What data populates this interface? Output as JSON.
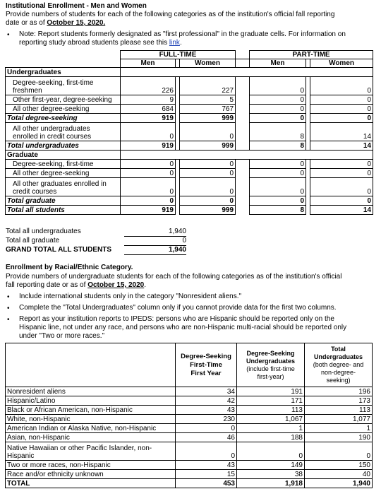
{
  "section1": {
    "title": "Institutional Enrollment - Men and Women",
    "intro_line1": "Provide numbers of students for each of the following categories as of the institution's official fall reporting",
    "intro_line2_prefix": "date or as of ",
    "date": "October 15, 2020.",
    "note_line1": "Note: Report students formerly designated as \"first professional\" in the graduate cells. For information on",
    "note_line2_prefix": "reporting study abroad students please see this ",
    "note_link": "link",
    "note_line2_suffix": "."
  },
  "table1": {
    "group_full": "FULL-TIME",
    "group_part": "PART-TIME",
    "col_men": "Men",
    "col_women": "Women",
    "rows": [
      {
        "kind": "sec",
        "label": "Undergraduates"
      },
      {
        "kind": "data",
        "label": "Degree-seeking, first-time",
        "label2": "freshmen",
        "v": [
          "226",
          "227",
          "0",
          "0"
        ]
      },
      {
        "kind": "data",
        "label": "Other first-year, degree-seeking",
        "v": [
          "9",
          "5",
          "0",
          "0"
        ]
      },
      {
        "kind": "data",
        "label": "All other degree-seeking",
        "v": [
          "684",
          "767",
          "0",
          "0"
        ]
      },
      {
        "kind": "tot",
        "label": "Total degree-seeking",
        "v": [
          "919",
          "999",
          "0",
          "0"
        ]
      },
      {
        "kind": "data",
        "label": "All other undergraduates",
        "label2": "enrolled in credit courses",
        "v": [
          "0",
          "0",
          "8",
          "14"
        ]
      },
      {
        "kind": "tot",
        "label": "Total undergraduates",
        "v": [
          "919",
          "999",
          "8",
          "14"
        ]
      },
      {
        "kind": "sec",
        "label": "Graduate"
      },
      {
        "kind": "data",
        "label": "Degree-seeking, first-time",
        "v": [
          "0",
          "0",
          "0",
          "0"
        ]
      },
      {
        "kind": "data",
        "label": "All other degree-seeking",
        "v": [
          "0",
          "0",
          "0",
          "0"
        ]
      },
      {
        "kind": "data",
        "label": "All other graduates enrolled in",
        "label2": "credit courses",
        "v": [
          "0",
          "0",
          "0",
          "0"
        ]
      },
      {
        "kind": "tot",
        "label": "Total graduate",
        "v": [
          "0",
          "0",
          "0",
          "0"
        ]
      },
      {
        "kind": "tot",
        "label": "Total all students",
        "v": [
          "919",
          "999",
          "8",
          "14"
        ]
      }
    ]
  },
  "totals": {
    "undergrad_label": "Total all undergraduates",
    "undergrad_value": "1,940",
    "graduate_label": "Total all graduate",
    "graduate_value": "0",
    "grand_label": "GRAND TOTAL ALL STUDENTS",
    "grand_value": "1,940"
  },
  "section2": {
    "title": "Enrollment by Racial/Ethnic Category.",
    "intro_line1": "Provide numbers of undergraduate students for each of the following categories as of the institution's official",
    "intro_line2_prefix": "fall reporting date or as of ",
    "date": "October 15, 2020",
    "intro_line2_suffix": ".",
    "bullet1": "Include international students only in the category \"Nonresident aliens.\"",
    "bullet2": "Complete the \"Total Undergraduates\" column only if you cannot provide data for the first two columns.",
    "bullet3_line1": "Report as your institution reports to IPEDS: persons who are Hispanic should be reported only on the",
    "bullet3_line2": "Hispanic line, not under any race, and persons who are non-Hispanic multi-racial should be reported only",
    "bullet3_line3": "under \"Two or more races.\""
  },
  "table2": {
    "col1_line1": "Degree-Seeking",
    "col1_line2": "First-Time",
    "col1_line3": "First Year",
    "col2_line1": "Degree-Seeking",
    "col2_line2": "Undergraduates",
    "col2_line3": "(include first-time",
    "col2_line4": "first-year)",
    "col3_line1": "Total",
    "col3_line2": "Undergraduates",
    "col3_line3": "(both degree- and",
    "col3_line4": "non-degree-",
    "col3_line5": "seeking)",
    "rows": [
      {
        "label": "Nonresident aliens",
        "v": [
          "34",
          "191",
          "196"
        ]
      },
      {
        "label": "Hispanic/Latino",
        "v": [
          "42",
          "171",
          "173"
        ]
      },
      {
        "label": "Black or African American, non-Hispanic",
        "v": [
          "43",
          "113",
          "113"
        ]
      },
      {
        "label": "White, non-Hispanic",
        "v": [
          "230",
          "1,067",
          "1,077"
        ]
      },
      {
        "label": "American Indian or Alaska Native, non-Hispanic",
        "v": [
          "0",
          "1",
          "1"
        ]
      },
      {
        "label": "Asian, non-Hispanic",
        "v": [
          "46",
          "188",
          "190"
        ]
      },
      {
        "label": "Native Hawaiian or other Pacific Islander, non-",
        "label2": "Hispanic",
        "v": [
          "0",
          "0",
          "0"
        ]
      },
      {
        "label": "Two or more races, non-Hispanic",
        "v": [
          "43",
          "149",
          "150"
        ]
      },
      {
        "label": "Race and/or ethnicity unknown",
        "v": [
          "15",
          "38",
          "40"
        ]
      },
      {
        "label": "TOTAL",
        "v": [
          "453",
          "1,918",
          "1,940"
        ],
        "bold": true
      }
    ]
  }
}
